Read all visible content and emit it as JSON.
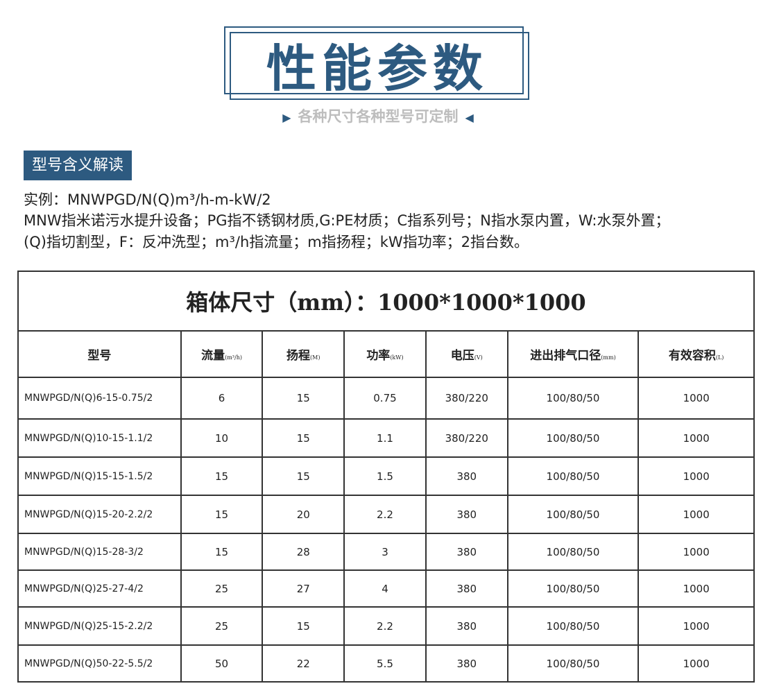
{
  "header": {
    "title": "性能参数",
    "subtitle": "各种尺寸各种型号可定制",
    "left_marker": "▶",
    "right_marker": "◀"
  },
  "section": {
    "badge": "型号含义解读",
    "example": "实例：MNWPGD/N(Q)m³/h-m-kW/2",
    "line1": "MNW指米诺污水提升设备；PG指不锈钢材质,G:PE材质；C指系列号；N指水泵内置，W:水泵外置；",
    "line2": "(Q)指切割型，F：反冲洗型；m³/h指流量；m指扬程；kW指功率；2指台数。"
  },
  "table": {
    "caption": "箱体尺寸（mm）：1000*1000*1000",
    "headers": [
      {
        "label": "型号",
        "unit": ""
      },
      {
        "label": "流量",
        "unit": "(m³/h)"
      },
      {
        "label": "扬程",
        "unit": "(M)"
      },
      {
        "label": "功率",
        "unit": "(kW)"
      },
      {
        "label": "电压",
        "unit": "(V)"
      },
      {
        "label": "进出排气口径",
        "unit": "(mm)"
      },
      {
        "label": "有效容积",
        "unit": "(L)"
      }
    ],
    "rows": [
      [
        "MNWPGD/N(Q)6-15-0.75/2",
        "6",
        "15",
        "0.75",
        "380/220",
        "100/80/50",
        "1000"
      ],
      [
        "MNWPGD/N(Q)10-15-1.1/2",
        "10",
        "15",
        "1.1",
        "380/220",
        "100/80/50",
        "1000"
      ],
      [
        "MNWPGD/N(Q)15-15-1.5/2",
        "15",
        "15",
        "1.5",
        "380",
        "100/80/50",
        "1000"
      ],
      [
        "MNWPGD/N(Q)15-20-2.2/2",
        "15",
        "20",
        "2.2",
        "380",
        "100/80/50",
        "1000"
      ],
      [
        "MNWPGD/N(Q)15-28-3/2",
        "15",
        "28",
        "3",
        "380",
        "100/80/50",
        "1000"
      ],
      [
        "MNWPGD/N(Q)25-27-4/2",
        "25",
        "27",
        "4",
        "380",
        "100/80/50",
        "1000"
      ],
      [
        "MNWPGD/N(Q)25-15-2.2/2",
        "25",
        "15",
        "2.2",
        "380",
        "100/80/50",
        "1000"
      ],
      [
        "MNWPGD/N(Q)50-22-5.5/2",
        "50",
        "22",
        "5.5",
        "380",
        "100/80/50",
        "1000"
      ]
    ]
  },
  "colors": {
    "accent": "#2d5a80",
    "subtitle": "#bdbdbd"
  }
}
